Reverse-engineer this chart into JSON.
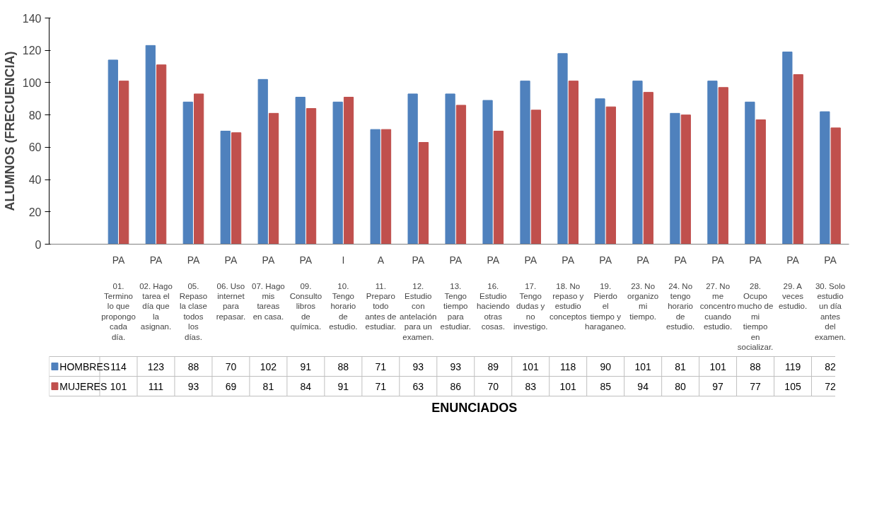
{
  "chart_data": {
    "type": "bar",
    "ylabel": "ALUMNOS (FRECUENCIA)",
    "categories": [
      "01. Termino lo que propongo cada día.",
      "02. Hago tarea el día que la asignan.",
      "05. Repaso la clase todos los días.",
      "06. Uso internet para repasar.",
      "07. Hago mis tareas en casa.",
      "09. Consulto libros de química.",
      "10. Tengo horario de estudio.",
      "11. Preparo todo antes de estudiar.",
      "12. Estudio con antelación para un examen.",
      "13. Tengo tiempo para estudiar.",
      "16. Estudio haciendo otras cosas.",
      "17. Tengo dudas y no investigo.",
      "18. No repaso y estudio conceptos",
      "19. Pierdo el tiempo y haraganeo.",
      "23. No organizo mi tiempo.",
      "24. No tengo horario de estudio.",
      "27. No me concentro cuando estudio.",
      "28. Ocupo mucho de mi tiempo en socializar.",
      "29. A veces estudio.",
      "30. Solo estudio un día antes del examen."
    ],
    "annotations": [
      "PA",
      "PA",
      "PA",
      "PA",
      "PA",
      "PA",
      "I",
      "A",
      "PA",
      "PA",
      "PA",
      "PA",
      "PA",
      "PA",
      "PA",
      "PA",
      "PA",
      "PA",
      "PA",
      "PA",
      "ENUNCIADOS"
    ],
    "series": [
      {
        "name": "HOMBRES",
        "color": "#4f81bd",
        "values": [
          114,
          123,
          88,
          70,
          102,
          91,
          88,
          71,
          93,
          93,
          89,
          101,
          118,
          90,
          101,
          81,
          101,
          88,
          119,
          82
        ]
      },
      {
        "name": "MUJERES",
        "color": "#c0504d",
        "values": [
          101,
          111,
          93,
          69,
          81,
          84,
          91,
          71,
          63,
          86,
          70,
          83,
          101,
          85,
          94,
          80,
          97,
          77,
          105,
          72
        ]
      }
    ],
    "ylim": [
      0,
      140
    ],
    "yticks": [
      0,
      20,
      40,
      60,
      80,
      100,
      120,
      140
    ],
    "grid": false,
    "legend": "bottom",
    "data_labels": true
  }
}
